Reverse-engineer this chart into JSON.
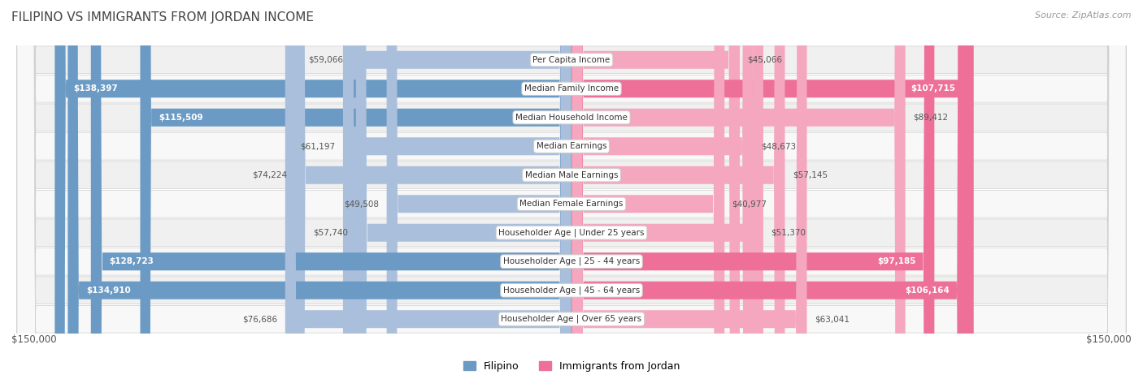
{
  "title": "FILIPINO VS IMMIGRANTS FROM JORDAN INCOME",
  "source": "Source: ZipAtlas.com",
  "categories": [
    "Per Capita Income",
    "Median Family Income",
    "Median Household Income",
    "Median Earnings",
    "Median Male Earnings",
    "Median Female Earnings",
    "Householder Age | Under 25 years",
    "Householder Age | 25 - 44 years",
    "Householder Age | 45 - 64 years",
    "Householder Age | Over 65 years"
  ],
  "filipino_values": [
    59066,
    138397,
    115509,
    61197,
    74224,
    49508,
    57740,
    128723,
    134910,
    76686
  ],
  "jordan_values": [
    45066,
    107715,
    89412,
    48673,
    57145,
    40977,
    51370,
    97185,
    106164,
    63041
  ],
  "filipino_labels": [
    "$59,066",
    "$138,397",
    "$115,509",
    "$61,197",
    "$74,224",
    "$49,508",
    "$57,740",
    "$128,723",
    "$134,910",
    "$76,686"
  ],
  "jordan_labels": [
    "$45,066",
    "$107,715",
    "$89,412",
    "$48,673",
    "$57,145",
    "$40,977",
    "$51,370",
    "$97,185",
    "$106,164",
    "$63,041"
  ],
  "filipino_color_light": "#AABFDC",
  "filipino_color_dark": "#6B9AC4",
  "jordan_color_light": "#F4A7BF",
  "jordan_color_dark": "#EE6F97",
  "max_value": 150000,
  "bar_height": 0.62,
  "background_color": "#ffffff",
  "row_bg_even": "#f0f0f0",
  "row_bg_odd": "#f8f8f8",
  "legend_filipino": "Filipino",
  "legend_jordan": "Immigrants from Jordan",
  "xlabel_left": "$150,000",
  "xlabel_right": "$150,000",
  "label_inside_threshold": 90000
}
